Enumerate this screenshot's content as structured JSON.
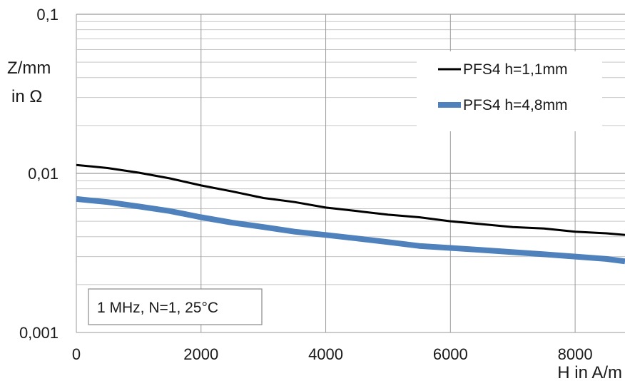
{
  "chart_data": {
    "type": "line",
    "ylabel_lines": [
      "Z/mm",
      "in Ω"
    ],
    "xlabel": "H in A/m",
    "xlim": [
      0,
      8800
    ],
    "ylim": [
      0.001,
      0.1
    ],
    "yscale": "log",
    "x_ticks": [
      "0",
      "2000",
      "4000",
      "6000",
      "8000"
    ],
    "y_ticks": [
      "0,001",
      "0,01",
      "0,1"
    ],
    "grid": true,
    "legend_position": "top-right",
    "annotation": "1 MHz, N=1, 25°C",
    "series": [
      {
        "name": "PFS4 h=1,1mm",
        "color": "#000000",
        "x": [
          0,
          500,
          1000,
          1500,
          2000,
          2500,
          3000,
          3500,
          4000,
          4500,
          5000,
          5500,
          6000,
          6500,
          7000,
          7500,
          8000,
          8500,
          8800
        ],
        "y": [
          0.0113,
          0.0108,
          0.0101,
          0.0093,
          0.0084,
          0.0077,
          0.007,
          0.0066,
          0.0061,
          0.0058,
          0.0055,
          0.0053,
          0.005,
          0.0048,
          0.0046,
          0.0045,
          0.0043,
          0.0042,
          0.0041
        ]
      },
      {
        "name": "PFS4 h=4,8mm",
        "color": "#4f81bd",
        "x": [
          0,
          500,
          1000,
          1500,
          2000,
          2500,
          3000,
          3500,
          4000,
          4500,
          5000,
          5500,
          6000,
          6500,
          7000,
          7500,
          8000,
          8500,
          8800
        ],
        "y": [
          0.0069,
          0.0066,
          0.0062,
          0.0058,
          0.0053,
          0.0049,
          0.0046,
          0.0043,
          0.0041,
          0.0039,
          0.0037,
          0.0035,
          0.0034,
          0.0033,
          0.0032,
          0.0031,
          0.003,
          0.0029,
          0.0028
        ]
      }
    ]
  }
}
